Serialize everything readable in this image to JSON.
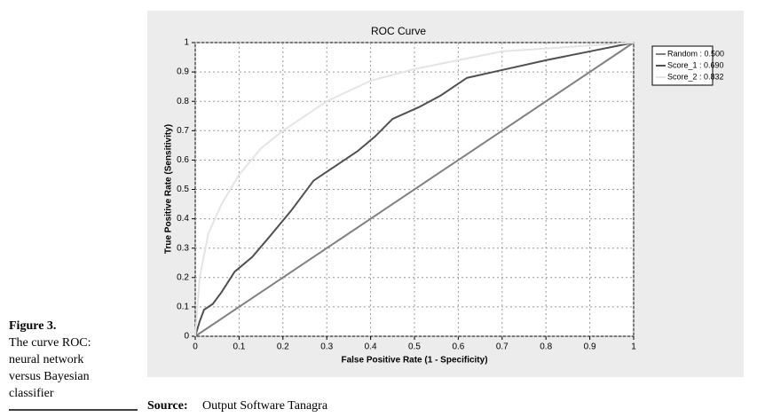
{
  "figure": {
    "label": "Figure 3.",
    "caption_lines": [
      "The curve ROC:",
      "neural network",
      "versus Bayesian",
      "classifier"
    ]
  },
  "source": {
    "label": "Source:",
    "text": "Output Software Tanagra"
  },
  "chart_data": {
    "type": "line",
    "title": "ROC Curve",
    "x_label": "False Positive Rate (1 - Specificity)",
    "y_label": "True Positive Rate (Sensitivity)",
    "xlim": [
      0,
      1
    ],
    "ylim": [
      0,
      1
    ],
    "xticks": [
      0,
      0.1,
      0.2,
      0.3,
      0.4,
      0.5,
      0.6,
      0.7,
      0.8,
      0.9,
      1
    ],
    "yticks": [
      0,
      0.1,
      0.2,
      0.3,
      0.4,
      0.5,
      0.6,
      0.7,
      0.8,
      0.9,
      1
    ],
    "grid": true,
    "legend": "outside-right",
    "series": [
      {
        "name": "Random : 0.500",
        "color": "#808080",
        "x": [
          0,
          1
        ],
        "values": [
          0,
          1
        ]
      },
      {
        "name": "Score_1 : 0.690",
        "color": "#505050",
        "x": [
          0,
          0.01,
          0.02,
          0.04,
          0.06,
          0.09,
          0.13,
          0.17,
          0.22,
          0.27,
          0.31,
          0.37,
          0.41,
          0.45,
          0.51,
          0.56,
          0.62,
          0.71,
          0.8,
          0.9,
          1
        ],
        "values": [
          0,
          0.05,
          0.09,
          0.11,
          0.15,
          0.22,
          0.27,
          0.34,
          0.43,
          0.53,
          0.57,
          0.63,
          0.68,
          0.74,
          0.78,
          0.82,
          0.88,
          0.91,
          0.94,
          0.97,
          1
        ]
      },
      {
        "name": "Score_2 : 0.832",
        "color": "#e4e4e4",
        "x": [
          0,
          0.01,
          0.03,
          0.06,
          0.1,
          0.15,
          0.2,
          0.3,
          0.4,
          0.5,
          0.6,
          0.7,
          0.8,
          1
        ],
        "values": [
          0,
          0.2,
          0.35,
          0.45,
          0.55,
          0.64,
          0.7,
          0.8,
          0.87,
          0.91,
          0.94,
          0.97,
          0.98,
          1
        ]
      }
    ]
  }
}
